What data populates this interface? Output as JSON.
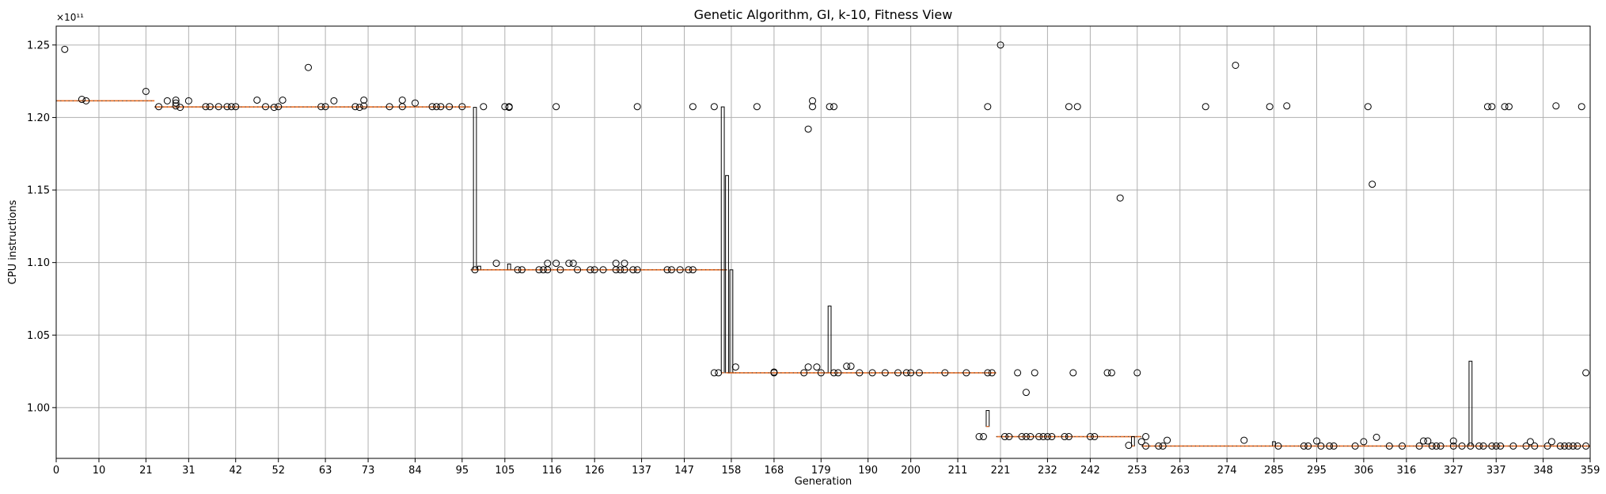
{
  "chart_data": {
    "type": "box",
    "title": "Genetic Algorithm, GI, k-10, Fitness View",
    "xlabel": "Generation",
    "ylabel": "CPU instructions",
    "y_offset_label": "×10¹¹",
    "y_scale": 100000000000.0,
    "xlim": [
      0,
      359
    ],
    "ylim": [
      0.965,
      1.263
    ],
    "x_ticks": [
      0,
      10,
      21,
      31,
      42,
      52,
      63,
      73,
      84,
      95,
      105,
      116,
      126,
      137,
      147,
      158,
      168,
      179,
      190,
      200,
      211,
      221,
      232,
      242,
      253,
      263,
      274,
      285,
      295,
      306,
      316,
      327,
      337,
      348,
      359
    ],
    "y_ticks": [
      1.0,
      1.05,
      1.1,
      1.15,
      1.2,
      1.25
    ],
    "y_tick_labels": [
      "1.00",
      "1.05",
      "1.10",
      "1.15",
      "1.20",
      "1.25"
    ],
    "grid": true,
    "median_segments": [
      {
        "x0": 0,
        "x1": 23,
        "y": 1.2115
      },
      {
        "x0": 23,
        "x1": 97,
        "y": 1.2073
      },
      {
        "x0": 97,
        "x1": 157,
        "y": 1.095
      },
      {
        "x0": 157,
        "x1": 220,
        "y": 1.024
      },
      {
        "x0": 220,
        "x1": 254,
        "y": 0.98
      },
      {
        "x0": 254,
        "x1": 359,
        "y": 0.9735
      }
    ],
    "boxes": [
      {
        "x": 98,
        "q1": 1.095,
        "q3": 1.207
      },
      {
        "x": 99,
        "q1": 1.095,
        "q3": 1.0975
      },
      {
        "x": 106,
        "q1": 1.095,
        "q3": 1.099
      },
      {
        "x": 156,
        "q1": 1.024,
        "q3": 1.2073
      },
      {
        "x": 157,
        "q1": 1.024,
        "q3": 1.16
      },
      {
        "x": 158,
        "q1": 1.024,
        "q3": 1.095
      },
      {
        "x": 181,
        "q1": 1.024,
        "q3": 1.07
      },
      {
        "x": 218,
        "q1": 0.987,
        "q3": 0.998
      },
      {
        "x": 252,
        "q1": 0.9735,
        "q3": 0.98
      },
      {
        "x": 285,
        "q1": 0.9735,
        "q3": 0.9765
      },
      {
        "x": 331,
        "q1": 0.9735,
        "q3": 1.032
      }
    ],
    "outliers": [
      [
        2,
        1.247
      ],
      [
        6,
        1.2125
      ],
      [
        7,
        1.2115
      ],
      [
        21,
        1.218
      ],
      [
        24,
        1.2075
      ],
      [
        26,
        1.2115
      ],
      [
        28,
        1.212
      ],
      [
        28,
        1.21
      ],
      [
        28,
        1.208
      ],
      [
        29,
        1.207
      ],
      [
        31,
        1.2115
      ],
      [
        35,
        1.2075
      ],
      [
        36,
        1.2075
      ],
      [
        38,
        1.2075
      ],
      [
        40,
        1.2075
      ],
      [
        41,
        1.2075
      ],
      [
        42,
        1.2075
      ],
      [
        47,
        1.212
      ],
      [
        49,
        1.2075
      ],
      [
        51,
        1.207
      ],
      [
        52,
        1.2075
      ],
      [
        53,
        1.212
      ],
      [
        59,
        1.2345
      ],
      [
        62,
        1.2075
      ],
      [
        63,
        1.2075
      ],
      [
        65,
        1.2115
      ],
      [
        70,
        1.2075
      ],
      [
        71,
        1.207
      ],
      [
        72,
        1.212
      ],
      [
        72,
        1.208
      ],
      [
        78,
        1.2075
      ],
      [
        81,
        1.212
      ],
      [
        81,
        1.2075
      ],
      [
        84,
        1.21
      ],
      [
        88,
        1.2075
      ],
      [
        89,
        1.2075
      ],
      [
        90,
        1.2075
      ],
      [
        92,
        1.2075
      ],
      [
        95,
        1.2075
      ],
      [
        98,
        1.095
      ],
      [
        100,
        1.2075
      ],
      [
        103,
        1.0995
      ],
      [
        105,
        1.2075
      ],
      [
        106,
        1.2075
      ],
      [
        106,
        1.207
      ],
      [
        108,
        1.095
      ],
      [
        109,
        1.095
      ],
      [
        113,
        1.095
      ],
      [
        114,
        1.095
      ],
      [
        115,
        1.0995
      ],
      [
        115,
        1.095
      ],
      [
        117,
        1.0995
      ],
      [
        117,
        1.2075
      ],
      [
        118,
        1.095
      ],
      [
        120,
        1.0995
      ],
      [
        121,
        1.0995
      ],
      [
        122,
        1.095
      ],
      [
        125,
        1.095
      ],
      [
        126,
        1.095
      ],
      [
        128,
        1.095
      ],
      [
        131,
        1.0995
      ],
      [
        131,
        1.095
      ],
      [
        132,
        1.095
      ],
      [
        133,
        1.0995
      ],
      [
        133,
        1.095
      ],
      [
        135,
        1.095
      ],
      [
        136,
        1.2075
      ],
      [
        136,
        1.095
      ],
      [
        143,
        1.095
      ],
      [
        144,
        1.095
      ],
      [
        146,
        1.095
      ],
      [
        148,
        1.095
      ],
      [
        149,
        1.095
      ],
      [
        149,
        1.2075
      ],
      [
        154,
        1.2075
      ],
      [
        154,
        1.024
      ],
      [
        155,
        1.024
      ],
      [
        159,
        1.028
      ],
      [
        164,
        1.2075
      ],
      [
        168,
        1.024
      ],
      [
        168,
        1.0245
      ],
      [
        175,
        1.024
      ],
      [
        176,
        1.192
      ],
      [
        176,
        1.028
      ],
      [
        177,
        1.2115
      ],
      [
        177,
        1.2075
      ],
      [
        178,
        1.028
      ],
      [
        179,
        1.024
      ],
      [
        181,
        1.2075
      ],
      [
        182,
        1.2075
      ],
      [
        182,
        1.024
      ],
      [
        183,
        1.024
      ],
      [
        185,
        1.0285
      ],
      [
        186,
        1.0285
      ],
      [
        188,
        1.024
      ],
      [
        191,
        1.024
      ],
      [
        194,
        1.024
      ],
      [
        197,
        1.024
      ],
      [
        199,
        1.024
      ],
      [
        200,
        1.024
      ],
      [
        202,
        1.024
      ],
      [
        208,
        1.024
      ],
      [
        213,
        1.024
      ],
      [
        216,
        0.98
      ],
      [
        217,
        0.98
      ],
      [
        218,
        1.2075
      ],
      [
        218,
        1.024
      ],
      [
        219,
        1.024
      ],
      [
        221,
        1.25
      ],
      [
        222,
        0.98
      ],
      [
        223,
        0.98
      ],
      [
        225,
        1.024
      ],
      [
        226,
        0.98
      ],
      [
        227,
        0.98
      ],
      [
        227,
        1.0105
      ],
      [
        228,
        0.98
      ],
      [
        229,
        1.024
      ],
      [
        230,
        0.98
      ],
      [
        231,
        0.98
      ],
      [
        232,
        0.98
      ],
      [
        233,
        0.98
      ],
      [
        236,
        0.98
      ],
      [
        237,
        0.98
      ],
      [
        237,
        1.2075
      ],
      [
        238,
        1.024
      ],
      [
        239,
        1.2075
      ],
      [
        242,
        0.98
      ],
      [
        243,
        0.98
      ],
      [
        246,
        1.024
      ],
      [
        247,
        1.024
      ],
      [
        249,
        1.1445
      ],
      [
        251,
        0.974
      ],
      [
        253,
        1.024
      ],
      [
        254,
        0.9765
      ],
      [
        255,
        0.98
      ],
      [
        255,
        0.9735
      ],
      [
        258,
        0.9735
      ],
      [
        259,
        0.9735
      ],
      [
        260,
        0.9775
      ],
      [
        269,
        1.2075
      ],
      [
        276,
        1.236
      ],
      [
        278,
        0.9775
      ],
      [
        284,
        1.2075
      ],
      [
        286,
        0.9735
      ],
      [
        288,
        1.208
      ],
      [
        292,
        0.9735
      ],
      [
        293,
        0.9735
      ],
      [
        295,
        0.977
      ],
      [
        296,
        0.9735
      ],
      [
        298,
        0.9735
      ],
      [
        299,
        0.9735
      ],
      [
        304,
        0.9735
      ],
      [
        306,
        0.9765
      ],
      [
        307,
        1.2075
      ],
      [
        308,
        1.154
      ],
      [
        309,
        0.9795
      ],
      [
        312,
        0.9735
      ],
      [
        315,
        0.9735
      ],
      [
        319,
        0.9735
      ],
      [
        320,
        0.977
      ],
      [
        321,
        0.977
      ],
      [
        322,
        0.9735
      ],
      [
        323,
        0.9735
      ],
      [
        324,
        0.9735
      ],
      [
        327,
        0.977
      ],
      [
        327,
        0.9735
      ],
      [
        329,
        0.9735
      ],
      [
        331,
        0.9735
      ],
      [
        333,
        0.9735
      ],
      [
        334,
        0.9735
      ],
      [
        335,
        1.2075
      ],
      [
        336,
        1.2075
      ],
      [
        336,
        0.9735
      ],
      [
        337,
        0.9735
      ],
      [
        338,
        0.9735
      ],
      [
        339,
        1.2075
      ],
      [
        340,
        1.2075
      ],
      [
        341,
        0.9735
      ],
      [
        344,
        0.9735
      ],
      [
        345,
        0.9765
      ],
      [
        346,
        0.9735
      ],
      [
        349,
        0.9735
      ],
      [
        350,
        0.9765
      ],
      [
        351,
        1.208
      ],
      [
        352,
        0.9735
      ],
      [
        353,
        0.9735
      ],
      [
        354,
        0.9735
      ],
      [
        355,
        0.9735
      ],
      [
        356,
        0.9735
      ],
      [
        357,
        1.2075
      ],
      [
        358,
        0.9735
      ],
      [
        358,
        1.024
      ]
    ],
    "colors": {
      "median": "#e8702a",
      "box": "#000000",
      "outlier": "#000000",
      "grid": "#b0b0b0"
    }
  }
}
